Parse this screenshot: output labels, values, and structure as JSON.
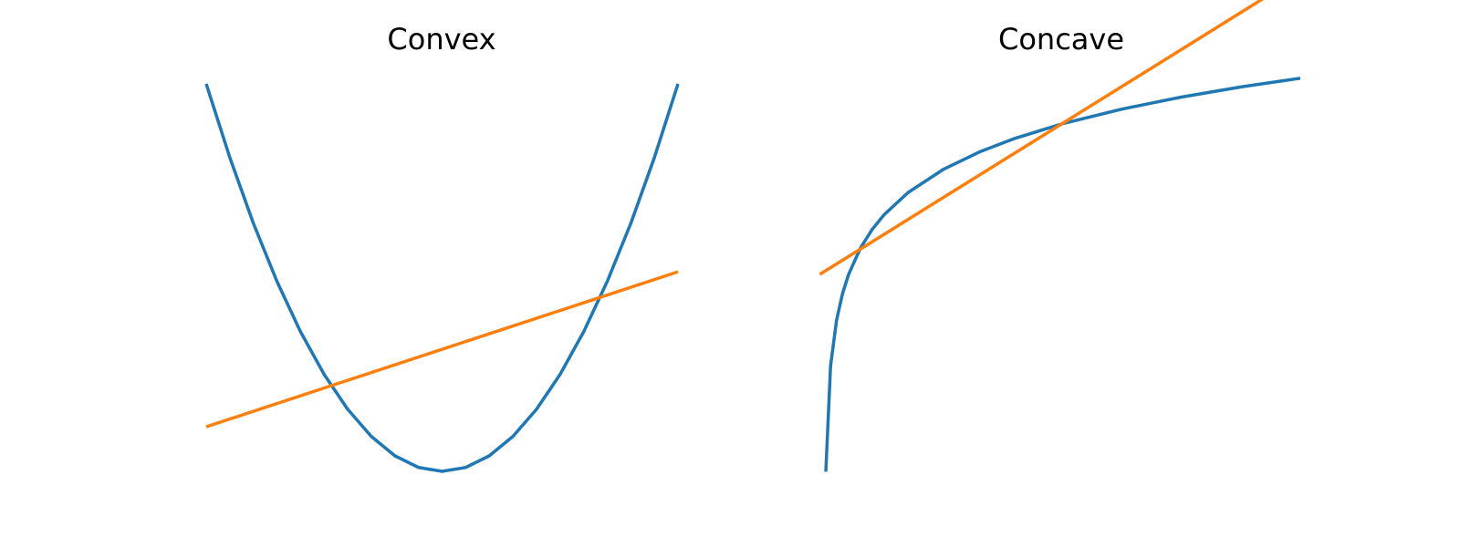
{
  "colors": {
    "curve": "#1f77b4",
    "line": "#ff7f0e",
    "background": "#ffffff"
  },
  "chart_data": [
    {
      "type": "line",
      "title": "Convex",
      "axes_visible": false,
      "grid": false,
      "legend": "none",
      "xlim": [
        -2,
        2
      ],
      "ylim": [
        0,
        4
      ],
      "series": [
        {
          "color": "#1f77b4",
          "x": [
            -2.0,
            -1.8,
            -1.6,
            -1.4,
            -1.2,
            -1.0,
            -0.8,
            -0.6,
            -0.4,
            -0.2,
            0.0,
            0.2,
            0.4,
            0.6,
            0.8,
            1.0,
            1.2,
            1.4,
            1.6,
            1.8,
            2.0
          ],
          "y": [
            4.0,
            3.24,
            2.56,
            1.96,
            1.44,
            1.0,
            0.64,
            0.36,
            0.16,
            0.04,
            0.0,
            0.04,
            0.16,
            0.36,
            0.64,
            1.0,
            1.44,
            1.96,
            2.56,
            3.24,
            4.0
          ]
        },
        {
          "color": "#ff7f0e",
          "x": [
            -2.0,
            2.0
          ],
          "y": [
            0.46,
            2.06
          ]
        }
      ]
    },
    {
      "type": "line",
      "title": "Concave",
      "axes_visible": false,
      "grid": false,
      "legend": "none",
      "xlim": [
        0.01,
        4
      ],
      "ylim": [
        -4.6,
        1.3
      ],
      "series": [
        {
          "color": "#1f77b4",
          "x": [
            0.01,
            0.05,
            0.1,
            0.15,
            0.2,
            0.3,
            0.4,
            0.5,
            0.7,
            1.0,
            1.3,
            1.6,
            2.0,
            2.5,
            3.0,
            3.5,
            4.0
          ],
          "y": [
            -4.605,
            -2.996,
            -2.303,
            -1.897,
            -1.609,
            -1.204,
            -0.916,
            -0.693,
            -0.357,
            0.0,
            0.262,
            0.47,
            0.693,
            0.916,
            1.099,
            1.253,
            1.386
          ],
          "note_visible": false
        },
        {
          "color": "#ff7f0e",
          "x": [
            -0.04,
            4.0
          ],
          "y": [
            -1.6,
            2.95
          ]
        }
      ]
    }
  ]
}
